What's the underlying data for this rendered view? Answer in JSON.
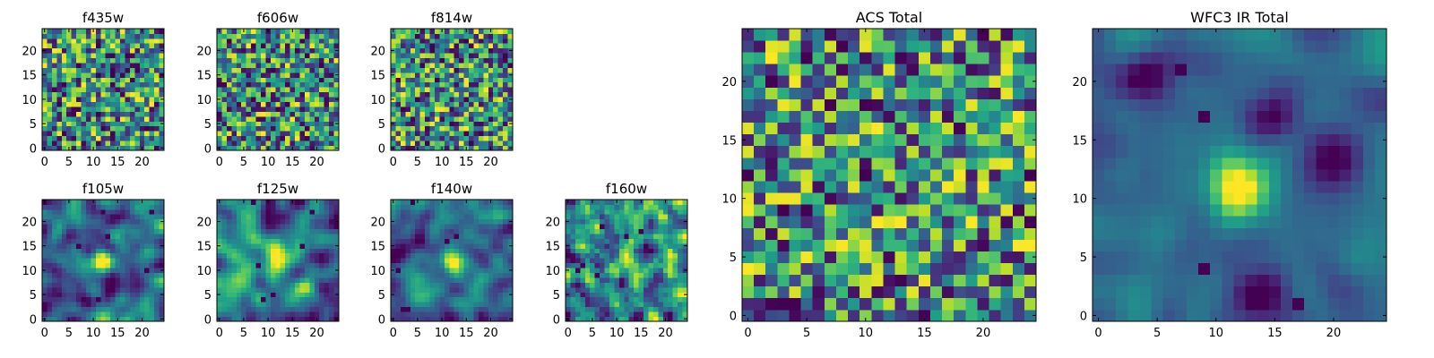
{
  "figure": {
    "colormap": "viridis",
    "grid_size": 25
  },
  "chart_data": [
    {
      "type": "heatmap",
      "title": "f435w",
      "xticks": [
        "0",
        "5",
        "10",
        "15",
        "20"
      ],
      "yticks": [
        "0",
        "5",
        "10",
        "15",
        "20"
      ],
      "xlim": [
        -0.5,
        24.5
      ],
      "ylim": [
        -0.5,
        24.5
      ],
      "seed": 11,
      "smooth": 0,
      "blobs": []
    },
    {
      "type": "heatmap",
      "title": "f606w",
      "xticks": [
        "0",
        "5",
        "10",
        "15",
        "20"
      ],
      "yticks": [
        "0",
        "5",
        "10",
        "15",
        "20"
      ],
      "xlim": [
        -0.5,
        24.5
      ],
      "ylim": [
        -0.5,
        24.5
      ],
      "seed": 23,
      "smooth": 0,
      "blobs": []
    },
    {
      "type": "heatmap",
      "title": "f814w",
      "xticks": [
        "0",
        "5",
        "10",
        "15",
        "20"
      ],
      "yticks": [
        "0",
        "5",
        "10",
        "15",
        "20"
      ],
      "xlim": [
        -0.5,
        24.5
      ],
      "ylim": [
        -0.5,
        24.5
      ],
      "seed": 37,
      "smooth": 0,
      "blobs": []
    },
    {
      "type": "heatmap",
      "title": "f105w",
      "xticks": [
        "0",
        "5",
        "10",
        "15",
        "20"
      ],
      "yticks": [
        "0",
        "5",
        "10",
        "15",
        "20"
      ],
      "xlim": [
        -0.5,
        24.5
      ],
      "ylim": [
        -0.5,
        24.5
      ],
      "seed": 41,
      "smooth": 2,
      "blobs": [
        [
          12,
          12,
          0.3
        ]
      ]
    },
    {
      "type": "heatmap",
      "title": "f125w",
      "xticks": [
        "0",
        "5",
        "10",
        "15",
        "20"
      ],
      "yticks": [
        "0",
        "5",
        "10",
        "15",
        "20"
      ],
      "xlim": [
        -0.5,
        24.5
      ],
      "ylim": [
        -0.5,
        24.5
      ],
      "seed": 53,
      "smooth": 2,
      "blobs": [
        [
          12,
          12,
          0.3
        ]
      ]
    },
    {
      "type": "heatmap",
      "title": "f140w",
      "xticks": [
        "0",
        "5",
        "10",
        "15",
        "20"
      ],
      "yticks": [
        "0",
        "5",
        "10",
        "15",
        "20"
      ],
      "xlim": [
        -0.5,
        24.5
      ],
      "ylim": [
        -0.5,
        24.5
      ],
      "seed": 67,
      "smooth": 2,
      "blobs": [
        [
          12,
          12,
          0.3
        ]
      ]
    },
    {
      "type": "heatmap",
      "title": "f160w",
      "xticks": [
        "0",
        "5",
        "10",
        "15",
        "20"
      ],
      "yticks": [
        "0",
        "5",
        "10",
        "15",
        "20"
      ],
      "xlim": [
        -0.5,
        24.5
      ],
      "ylim": [
        -0.5,
        24.5
      ],
      "seed": 79,
      "smooth": 1,
      "blobs": [
        [
          12,
          12,
          0.2
        ]
      ]
    },
    {
      "type": "heatmap",
      "title": "ACS Total",
      "xticks": [
        "0",
        "5",
        "10",
        "15",
        "20"
      ],
      "yticks": [
        "0",
        "5",
        "10",
        "15",
        "20"
      ],
      "xlim": [
        -0.5,
        24.5
      ],
      "ylim": [
        -0.5,
        24.5
      ],
      "seed": 97,
      "smooth": 0,
      "blobs": []
    },
    {
      "type": "heatmap",
      "title": "WFC3 IR Total",
      "xticks": [
        "0",
        "5",
        "10",
        "15",
        "20"
      ],
      "yticks": [
        "0",
        "5",
        "10",
        "15",
        "20"
      ],
      "xlim": [
        -0.5,
        24.5
      ],
      "ylim": [
        -0.5,
        24.5
      ],
      "seed": 113,
      "smooth": 2,
      "blobs": [
        [
          12,
          11,
          0.9
        ],
        [
          4,
          20,
          -0.5
        ],
        [
          15,
          17,
          -0.4
        ],
        [
          20,
          13,
          -0.6
        ],
        [
          14,
          2,
          -0.5
        ]
      ]
    }
  ]
}
